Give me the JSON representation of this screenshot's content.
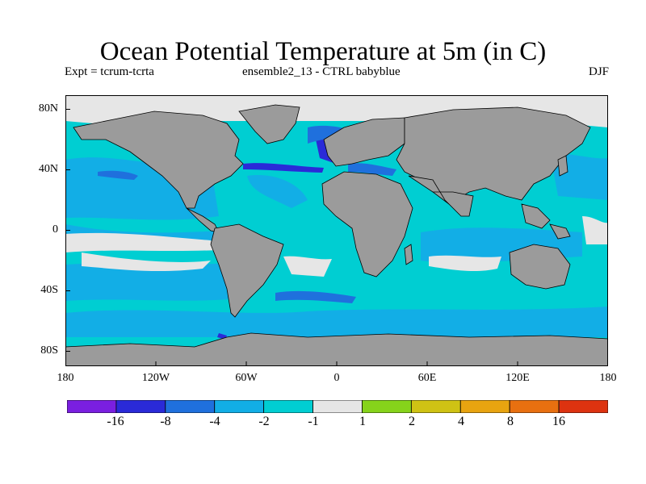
{
  "title": "Ocean Potential Temperature at 5m (in C)",
  "subtitle_left": "Expt = tcrum-tcrta",
  "subtitle_center": "ensemble2_13 - CTRL babyblue",
  "season": "DJF",
  "y_axis_labels": [
    "80N",
    "40N",
    "0",
    "40S",
    "80S"
  ],
  "x_axis_labels": [
    "180",
    "120W",
    "60W",
    "0",
    "60E",
    "120E",
    "180"
  ],
  "colorbar": {
    "labels": [
      "-16",
      "-8",
      "-4",
      "-2",
      "-1",
      "1",
      "2",
      "4",
      "8",
      "16"
    ],
    "colors": [
      "#7a1fe0",
      "#2a2ad8",
      "#1f70dd",
      "#12aee6",
      "#00ced2",
      "#e6e6e6",
      "#86d31b",
      "#cfc214",
      "#e8a410",
      "#e87010",
      "#dd3310"
    ]
  },
  "map_colors": {
    "land": "#9b9b9b",
    "ice": "#e6e6e6",
    "cyan": "#00ced2",
    "light_blue": "#12aee6",
    "mid_blue": "#1f70dd",
    "dark_blue": "#2a2ad8",
    "near_zero": "#e6e6e6"
  }
}
